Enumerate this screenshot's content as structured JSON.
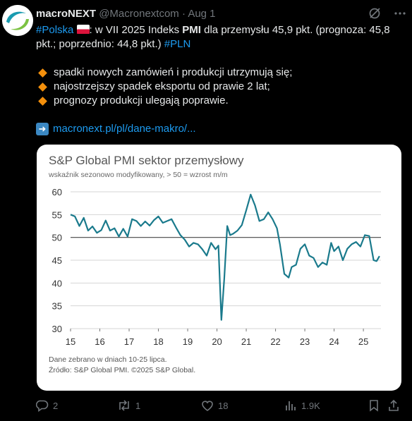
{
  "tweet": {
    "author_name": "macroNEXT",
    "handle": "@Macronextcom",
    "separator": "·",
    "date": "Aug 1",
    "hashtag_country": "#Polska",
    "text_intro": ": w VII 2025 Indeks ",
    "text_bold": "PMI",
    "text_main": " dla przemysłu 45,9 pkt. (prognoza: 45,8 pkt.; poprzednio: 44,8 pkt.) ",
    "hashtag_currency": "#PLN",
    "bullets": [
      "spadki nowych zamówień i produkcji utrzymują się;",
      "najostrzejszy spadek eksportu od prawie 2 lat;",
      "prognozy produkcji ulegają poprawie."
    ],
    "link": "macronext.pl/pl/dane-makro/..."
  },
  "card": {
    "title": "S&P Global PMI sektor przemysłowy",
    "subtitle": "wskaźnik sezonowo modyfikowany, > 50 = wzrost m/m",
    "note_line1": "Dane zebrano w dniach 10-25 lipca.",
    "note_line2": "Źródło: S&P Global PMI. ©2025 S&P Global."
  },
  "chart_data": {
    "type": "line",
    "title": "S&P Global PMI sektor przemysłowy",
    "subtitle": "wskaźnik sezonowo modyfikowany, > 50 = wzrost m/m",
    "ylim": [
      30,
      60
    ],
    "yticks": [
      30,
      35,
      40,
      45,
      50,
      55,
      60
    ],
    "xlim": [
      2015.0,
      2025.6
    ],
    "xticks": [
      {
        "x": 2015.0,
        "label": "15"
      },
      {
        "x": 2016.0,
        "label": "16"
      },
      {
        "x": 2017.0,
        "label": "17"
      },
      {
        "x": 2018.0,
        "label": "18"
      },
      {
        "x": 2019.0,
        "label": "19"
      },
      {
        "x": 2020.0,
        "label": "20"
      },
      {
        "x": 2021.0,
        "label": "21"
      },
      {
        "x": 2022.0,
        "label": "22"
      },
      {
        "x": 2023.0,
        "label": "23"
      },
      {
        "x": 2024.0,
        "label": "24"
      },
      {
        "x": 2025.0,
        "label": "25"
      }
    ],
    "grid": true,
    "reference_line": 50,
    "color": "#1a7a8c",
    "series": [
      {
        "x": [
          2015.0,
          2015.15,
          2015.3,
          2015.45,
          2015.6,
          2015.75,
          2015.9,
          2016.05,
          2016.2,
          2016.35,
          2016.5,
          2016.65,
          2016.8,
          2016.95,
          2017.1,
          2017.25,
          2017.4,
          2017.55,
          2017.7,
          2017.85,
          2018.0,
          2018.15,
          2018.3,
          2018.45,
          2018.6,
          2018.75,
          2018.9,
          2019.05,
          2019.2,
          2019.35,
          2019.5,
          2019.65,
          2019.8,
          2019.95,
          2020.05,
          2020.15,
          2020.25,
          2020.35,
          2020.45,
          2020.55,
          2020.7,
          2020.85,
          2021.0,
          2021.15,
          2021.3,
          2021.45,
          2021.6,
          2021.75,
          2021.9,
          2022.05,
          2022.15,
          2022.3,
          2022.45,
          2022.55,
          2022.7,
          2022.85,
          2023.0,
          2023.15,
          2023.3,
          2023.45,
          2023.6,
          2023.75,
          2023.9,
          2024.0,
          2024.15,
          2024.3,
          2024.45,
          2024.6,
          2024.75,
          2024.9,
          2025.05,
          2025.2,
          2025.35,
          2025.45,
          2025.55
        ],
        "y": [
          55.0,
          54.6,
          52.5,
          54.3,
          51.5,
          52.4,
          51.0,
          51.6,
          53.7,
          51.5,
          52.0,
          50.2,
          51.9,
          50.2,
          54.0,
          53.6,
          52.5,
          53.5,
          52.6,
          53.8,
          54.6,
          53.2,
          53.6,
          54.0,
          52.2,
          50.5,
          49.5,
          48.0,
          48.8,
          48.5,
          47.4,
          46.0,
          48.8,
          47.4,
          48.2,
          31.9,
          41.0,
          52.5,
          50.5,
          50.8,
          51.5,
          52.7,
          56.0,
          59.4,
          57.0,
          53.6,
          54.0,
          55.5,
          54.0,
          52.0,
          48.5,
          42.0,
          41.2,
          43.5,
          44.0,
          47.5,
          48.5,
          46.0,
          45.5,
          43.5,
          44.5,
          44.0,
          48.8,
          47.0,
          48.0,
          45.0,
          47.5,
          48.5,
          49.0,
          48.0,
          50.5,
          50.3,
          45.0,
          44.8,
          45.9
        ]
      }
    ]
  },
  "actions": {
    "replies": "2",
    "reposts": "1",
    "likes": "18",
    "views": "1.9K"
  },
  "icons": {
    "grok": "grok-icon",
    "more": "more-dots-icon",
    "reply": "reply-icon",
    "repost": "repost-icon",
    "like": "heart-icon",
    "views": "views-icon",
    "bookmark": "bookmark-icon",
    "share": "share-icon"
  }
}
